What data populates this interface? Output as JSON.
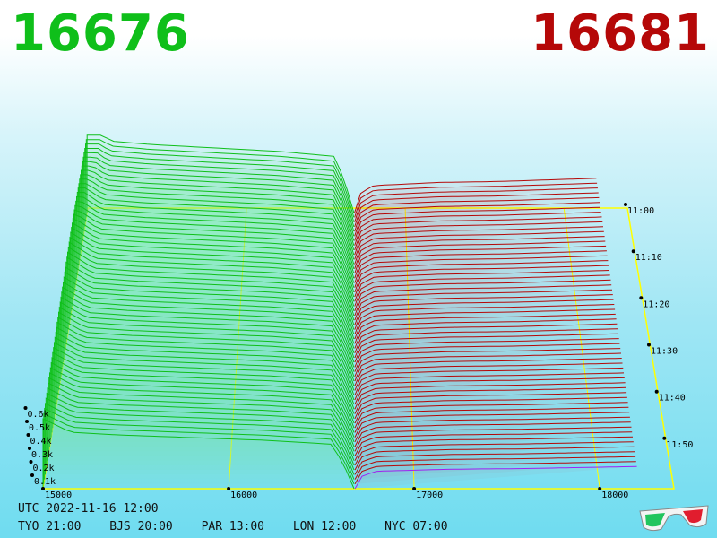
{
  "header": {
    "bid_price": "16676",
    "ask_price": "16681"
  },
  "footer": {
    "utc": "UTC 2022-11-16 12:00",
    "clocks": [
      "TYO 21:00",
      "BJS 20:00",
      "PAR 13:00",
      "LON 12:00",
      "NYC 07:00"
    ]
  },
  "colors": {
    "bid": "#0fbf1a",
    "ask": "#b50808",
    "grid": "#ffff00"
  },
  "icons": {
    "corner": "3d-glasses-icon"
  },
  "chart_data": {
    "type": "area",
    "title": "",
    "price_axis": {
      "range": [
        15000,
        18400
      ],
      "ticks": [
        15000,
        16000,
        17000,
        18000
      ],
      "labels": [
        "15000",
        "16000",
        "17000",
        "18000"
      ]
    },
    "volume_axis": {
      "range": [
        0,
        700
      ],
      "ticks": [
        100,
        200,
        300,
        400,
        500,
        600
      ],
      "labels": [
        "0.1k",
        "0.2k",
        "0.3k",
        "0.4k",
        "0.5k",
        "0.6k"
      ]
    },
    "time_axis": {
      "labels": [
        "11:00",
        "11:10",
        "11:20",
        "11:30",
        "11:40",
        "11:50"
      ]
    },
    "snapshots": 60,
    "best_bid": 16676,
    "best_ask": 16681,
    "bid_depth_latest": [
      {
        "price": 15000,
        "volume": 520
      },
      {
        "price": 15150,
        "volume": 420
      },
      {
        "price": 15400,
        "volume": 400
      },
      {
        "price": 15800,
        "volume": 380
      },
      {
        "price": 16200,
        "volume": 360
      },
      {
        "price": 16560,
        "volume": 330
      },
      {
        "price": 16640,
        "volume": 120
      },
      {
        "price": 16676,
        "volume": 0
      }
    ],
    "ask_depth_latest": [
      {
        "price": 16681,
        "volume": 0
      },
      {
        "price": 16720,
        "volume": 95
      },
      {
        "price": 16800,
        "volume": 130
      },
      {
        "price": 17200,
        "volume": 145
      },
      {
        "price": 17600,
        "volume": 150
      },
      {
        "price": 18000,
        "volume": 160
      },
      {
        "price": 18200,
        "volume": 165
      }
    ]
  }
}
